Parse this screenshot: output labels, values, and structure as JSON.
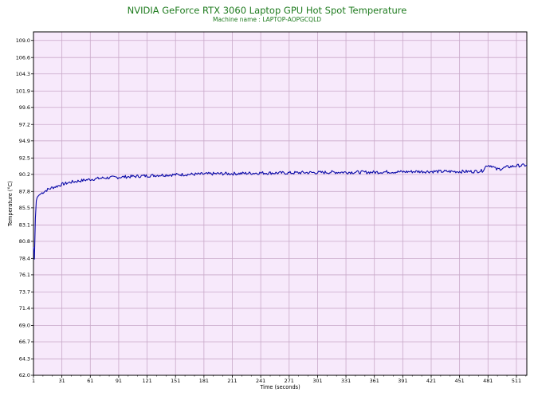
{
  "chart_data": {
    "type": "line",
    "title": "NVIDIA GeForce RTX 3060 Laptop GPU Hot Spot Temperature",
    "subtitle": "Machine name : LAPTOP-AOPGCQLD",
    "xlabel": "Time (seconds)",
    "ylabel": "Temperature (°C)",
    "xlim": [
      1,
      522
    ],
    "ylim": [
      62.0,
      110.2
    ],
    "x_ticks": [
      1,
      31,
      61,
      91,
      121,
      151,
      181,
      211,
      241,
      271,
      301,
      331,
      361,
      391,
      421,
      451,
      481,
      511
    ],
    "y_ticks": [
      62.0,
      64.3,
      66.7,
      69.0,
      71.4,
      73.7,
      76.1,
      78.4,
      80.8,
      83.1,
      85.5,
      87.8,
      90.2,
      92.5,
      94.9,
      97.2,
      99.6,
      101.9,
      104.3,
      106.6,
      109.0
    ],
    "grid": true,
    "plot_background": "#f7e9fb",
    "grid_color": "#c9a9c9",
    "line_color": "#0a0aa8",
    "title_color": "#1e7b1e",
    "series": [
      {
        "name": "",
        "x": [
          1,
          2,
          3,
          4,
          5,
          7,
          10,
          15,
          20,
          25,
          31,
          40,
          50,
          61,
          75,
          91,
          105,
          121,
          135,
          151,
          165,
          181,
          195,
          211,
          225,
          241,
          255,
          271,
          285,
          301,
          315,
          331,
          345,
          361,
          375,
          391,
          405,
          421,
          435,
          451,
          465,
          475,
          480,
          485,
          490,
          495,
          500,
          511,
          522
        ],
        "y": [
          80.0,
          78.3,
          84.0,
          86.5,
          87.0,
          87.3,
          87.6,
          88.0,
          88.3,
          88.5,
          88.8,
          89.1,
          89.3,
          89.5,
          89.7,
          89.8,
          89.9,
          90.0,
          90.1,
          90.15,
          90.2,
          90.25,
          90.3,
          90.3,
          90.35,
          90.4,
          90.4,
          90.4,
          90.45,
          90.45,
          90.5,
          90.5,
          90.5,
          90.5,
          90.55,
          90.55,
          90.6,
          90.6,
          90.6,
          90.6,
          90.6,
          90.7,
          91.5,
          91.4,
          90.9,
          91.0,
          91.2,
          91.4,
          91.5
        ]
      }
    ]
  }
}
